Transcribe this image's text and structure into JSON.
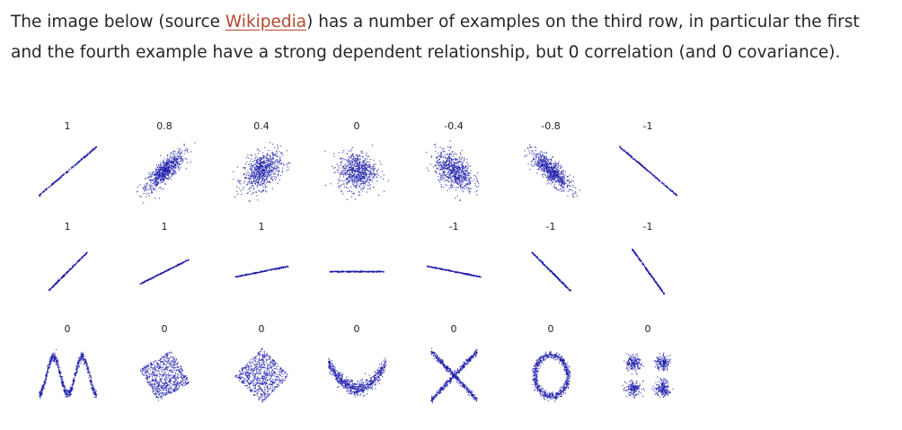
{
  "paragraph": {
    "before_link": "The image below (source ",
    "link_text": "Wikipedia",
    "after_link": ") has a number of examples on the third row, in particular the first and the fourth example have a strong dependent relationship, but 0 correlation (and 0 covariance)."
  },
  "figure": {
    "point_color": "#1a1aa8",
    "rows": [
      {
        "labels": [
          "1",
          "0.8",
          "0.4",
          "0",
          "-0.4",
          "-0.8",
          "-1"
        ],
        "shapes": [
          "line-1",
          "corr-0.8",
          "corr-0.4",
          "corr-0",
          "corr--0.4",
          "corr--0.8",
          "line--1"
        ]
      },
      {
        "labels": [
          "1",
          "1",
          "1",
          "",
          "-1",
          "-1",
          "-1"
        ],
        "shapes": [
          "slope-1",
          "slope-0.5",
          "slope-0.2",
          "slope-0",
          "slope--0.2",
          "slope--1",
          "slope--1.4"
        ]
      },
      {
        "labels": [
          "0",
          "0",
          "0",
          "0",
          "0",
          "0",
          "0"
        ],
        "shapes": [
          "wave-w",
          "rotated-square",
          "diamond",
          "parabola",
          "x-cross",
          "ring",
          "four-clusters"
        ]
      }
    ]
  }
}
